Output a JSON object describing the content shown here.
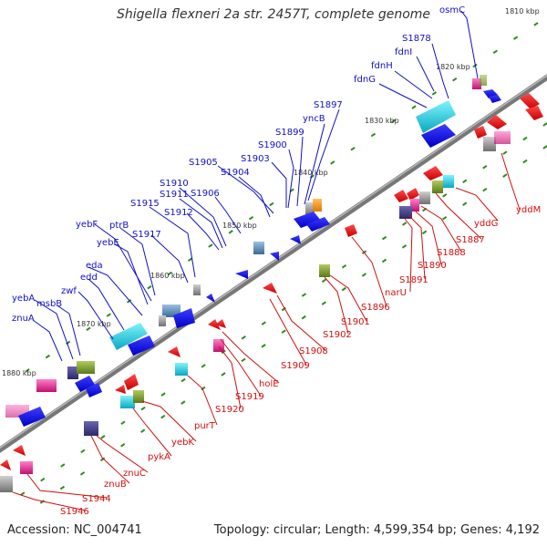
{
  "title": "Shigella flexneri 2a str. 2457T, complete genome",
  "footer": {
    "accession": "Accession: NC_004741",
    "summary": "Topology: circular; Length: 4,599,354 bp; Genes: 4,192"
  },
  "ruler": [
    "1810 kbp",
    "1820 kbp",
    "1830 kbp",
    "1840 kbp",
    "1850 kbp",
    "1860 kbp",
    "1870 kbp",
    "1880 kbp"
  ],
  "plus_genes": [
    "osmC",
    "S1878",
    "fdnI",
    "fdnH",
    "fdnG",
    "S1897",
    "yncB",
    "S1899",
    "S1900",
    "S1903",
    "S1905",
    "S1904",
    "S1906",
    "S1910",
    "S1911",
    "S1912",
    "S1915",
    "S1917",
    "ptrB",
    "yebF",
    "yebE",
    "eda",
    "edd",
    "zwf",
    "yebA",
    "msbB",
    "znuA"
  ],
  "minus_genes": [
    "yddM",
    "yddG",
    "S1887",
    "S1888",
    "S1890",
    "S1891",
    "narU",
    "S1896",
    "S1901",
    "S1902",
    "S1908",
    "S1909",
    "holE",
    "S1919",
    "S1920",
    "purT",
    "yebK",
    "pykA",
    "znuC",
    "znuB",
    "S1944",
    "S1946"
  ],
  "colors": {
    "plus_label": "#1010c8",
    "minus_label": "#d01010",
    "backbone": "#777777",
    "tick": "#2e8b20",
    "plus_feature": "#0a0ae6",
    "minus_feature": "#f01010",
    "cyan_feature": "#11d8e8",
    "steel_feature": "#5a86b4",
    "magenta_feature": "#e0208c",
    "olive_feature": "#7a9a2a",
    "navy_feature": "#3d3a80"
  }
}
